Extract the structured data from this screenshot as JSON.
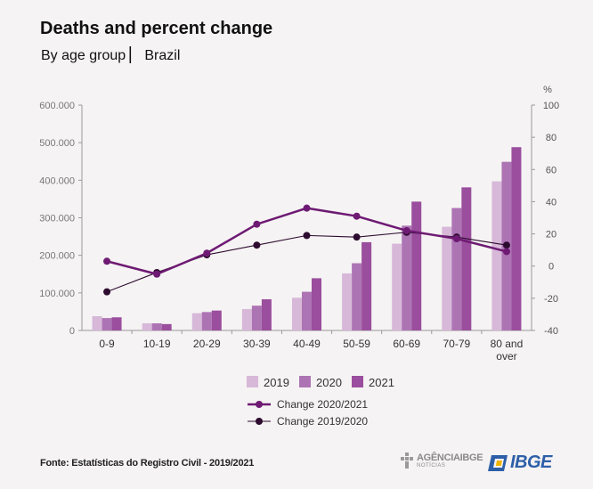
{
  "header": {
    "title": "Deaths and percent change",
    "subtitle": "By age group ▏ Brazil"
  },
  "footer": {
    "source": "Fonte: Estatísticas do Registro Civil - 2019/2021",
    "agencia_logo_text": "AGÊNCIAIBGE",
    "agencia_logo_subtext": "NOTÍCIAS",
    "ibge_logo_text": "IBGE",
    "agencia_logo_icon": "agencia-ibge-logo-icon",
    "ibge_logo_icon": "ibge-logo-icon"
  },
  "chart_data": {
    "type": "bar",
    "categories": [
      "0-9",
      "10-19",
      "20-29",
      "30-39",
      "40-49",
      "50-59",
      "60-69",
      "70-79",
      "80 and over"
    ],
    "series": [
      {
        "name": "2019",
        "color": "#d7b8d9",
        "values": [
          38000,
          19000,
          46000,
          57000,
          87000,
          152000,
          231000,
          276000,
          397000
        ]
      },
      {
        "name": "2020",
        "color": "#ad74b4",
        "values": [
          33000,
          19000,
          49000,
          66000,
          103000,
          179000,
          279000,
          326000,
          449000
        ]
      },
      {
        "name": "2021",
        "color": "#9a4e9d",
        "values": [
          35000,
          17000,
          53000,
          83000,
          139000,
          235000,
          343000,
          381000,
          488000
        ]
      }
    ],
    "lines": [
      {
        "name": "Change 2020/2021",
        "color": "#6e1a73",
        "width": 2.5,
        "values": [
          3,
          -5,
          8,
          26,
          36,
          31,
          22,
          17,
          9
        ]
      },
      {
        "name": "Change 2019/2020",
        "color": "#2d0b2f",
        "width": 1.1,
        "values": [
          -16,
          -4,
          7,
          13,
          19,
          18,
          21,
          18,
          13
        ]
      }
    ],
    "y_left": {
      "min": 0,
      "max": 600000,
      "ticks": [
        "0",
        "100.000",
        "200.000",
        "300.000",
        "400.000",
        "500.000",
        "600.000"
      ]
    },
    "y_right": {
      "min": -40,
      "max": 100,
      "unit": "%",
      "ticks": [
        "-40",
        "-20",
        "0",
        "20",
        "40",
        "60",
        "80",
        "100"
      ]
    },
    "legend_placement": "bottom-center"
  }
}
